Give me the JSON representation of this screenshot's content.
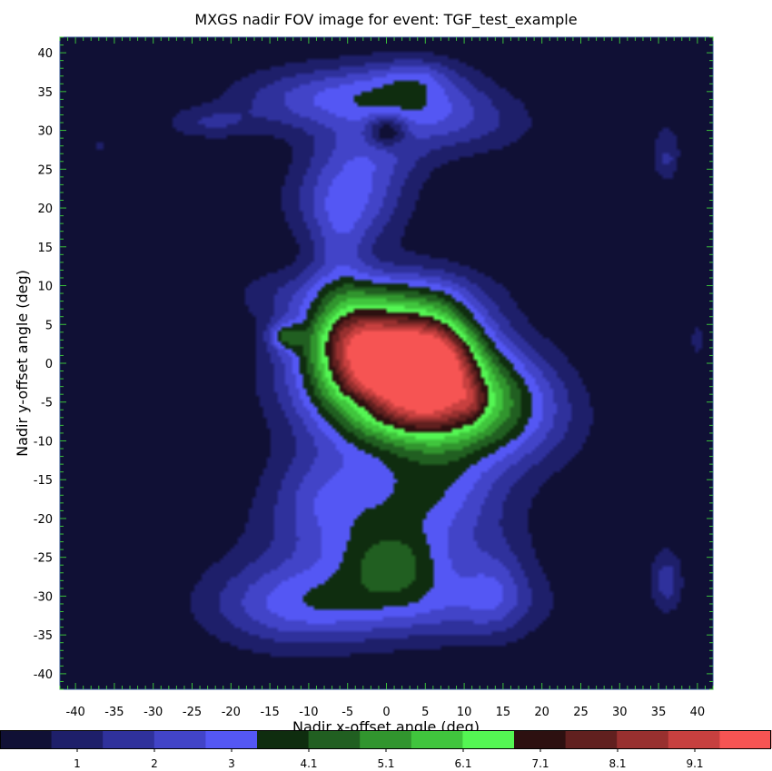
{
  "chart_data": {
    "type": "heatmap",
    "title": "MXGS nadir FOV image for event: TGF_test_example",
    "xlabel": "Nadir x-offset angle (deg)",
    "ylabel": "Nadir y-offset angle (deg)",
    "xlim": [
      -42,
      42
    ],
    "ylim": [
      -42,
      42
    ],
    "xticks": [
      -40,
      -35,
      -30,
      -25,
      -20,
      -15,
      -10,
      -5,
      0,
      5,
      10,
      15,
      20,
      25,
      30,
      35,
      40
    ],
    "yticks": [
      40,
      35,
      30,
      25,
      20,
      15,
      10,
      5,
      0,
      -5,
      -10,
      -15,
      -20,
      -25,
      -30,
      -35,
      -40
    ],
    "background_level": 0,
    "colorbar": {
      "colors": [
        "#101035",
        "#1e1f6a",
        "#2f319c",
        "#4244c8",
        "#5457f4",
        "#0f2d0f",
        "#215f21",
        "#31952e",
        "#40c53d",
        "#54f653",
        "#2d1010",
        "#61201f",
        "#98302f",
        "#c7403f",
        "#f65453"
      ],
      "tick_labels": [
        "1",
        "2",
        "3",
        "4.1",
        "5.1",
        "6.1",
        "7.1",
        "8.1",
        "9.1"
      ]
    },
    "blobs": [
      {
        "x": 1,
        "y": 0,
        "sx": 7.5,
        "sy": 5.5,
        "amp": 10
      },
      {
        "x": -5,
        "y": 4,
        "sx": 4,
        "sy": 3,
        "amp": 2.5
      },
      {
        "x": 7,
        "y": 1,
        "sx": 3.5,
        "sy": 5,
        "amp": 2.5
      },
      {
        "x": -4,
        "y": 9,
        "sx": 10,
        "sy": 2.5,
        "amp": 1.6
      },
      {
        "x": 4,
        "y": -6,
        "sx": 9,
        "sy": 5,
        "amp": 2.6
      },
      {
        "x": 12,
        "y": -8,
        "sx": 8,
        "sy": 4.5,
        "amp": 2.4
      },
      {
        "x": 16,
        "y": -3,
        "sx": 5,
        "sy": 4,
        "amp": 1.2
      },
      {
        "x": 6,
        "y": -16,
        "sx": 6,
        "sy": 3.5,
        "amp": 1.8
      },
      {
        "x": -8,
        "y": -16,
        "sx": 5,
        "sy": 4,
        "amp": 1.6
      },
      {
        "x": 0,
        "y": -22,
        "sx": 10,
        "sy": 4.5,
        "amp": 2.6
      },
      {
        "x": 1,
        "y": -26,
        "sx": 4.5,
        "sy": 3,
        "amp": 1.7
      },
      {
        "x": -12,
        "y": -31,
        "sx": 8,
        "sy": 4,
        "amp": 2.5
      },
      {
        "x": 5,
        "y": -31,
        "sx": 10,
        "sy": 3.5,
        "amp": 2.2
      },
      {
        "x": 14,
        "y": -29,
        "sx": 3,
        "sy": 4,
        "amp": 1.3
      },
      {
        "x": -6,
        "y": 14,
        "sx": 2.5,
        "sy": 4,
        "amp": 1.4
      },
      {
        "x": -5,
        "y": 21,
        "sx": 5,
        "sy": 4,
        "amp": 2.7
      },
      {
        "x": -2,
        "y": 27,
        "sx": 5,
        "sy": 3,
        "amp": 1.6
      },
      {
        "x": -8,
        "y": 34,
        "sx": 8,
        "sy": 3,
        "amp": 2.4
      },
      {
        "x": 3,
        "y": 35,
        "sx": 6,
        "sy": 3,
        "amp": 2.0
      },
      {
        "x": 4,
        "y": 37,
        "sx": 3,
        "sy": 1.5,
        "amp": 0.8
      },
      {
        "x": 9,
        "y": 31,
        "sx": 7,
        "sy": 3,
        "amp": 1.6
      },
      {
        "x": -23,
        "y": 31,
        "sx": 4,
        "sy": 1.5,
        "amp": 1.2
      },
      {
        "x": -13,
        "y": 3.5,
        "sx": 1.5,
        "sy": 1.2,
        "amp": 2.5
      },
      {
        "x": 11,
        "y": -5,
        "sx": 1.2,
        "sy": 1.5,
        "amp": 1.0
      },
      {
        "x": 36,
        "y": 27,
        "sx": 1.2,
        "sy": 2.5,
        "amp": 1.6
      },
      {
        "x": 36,
        "y": -28,
        "sx": 1.5,
        "sy": 3,
        "amp": 1.7
      },
      {
        "x": 40,
        "y": 3,
        "sx": 0.6,
        "sy": 1.5,
        "amp": 1.2
      },
      {
        "x": -37,
        "y": 28,
        "sx": 0.5,
        "sy": 0.5,
        "amp": 1.1
      }
    ],
    "holes": [
      {
        "x": 0,
        "y": 30,
        "sx": 1.8,
        "sy": 1.5,
        "amp": 2.5
      },
      {
        "x": -2,
        "y": -5,
        "sx": 3,
        "sy": 1.5,
        "amp": 0.8
      },
      {
        "x": 36,
        "y": 27.5,
        "sx": 0.4,
        "sy": 0.5,
        "amp": 0.6
      }
    ]
  }
}
